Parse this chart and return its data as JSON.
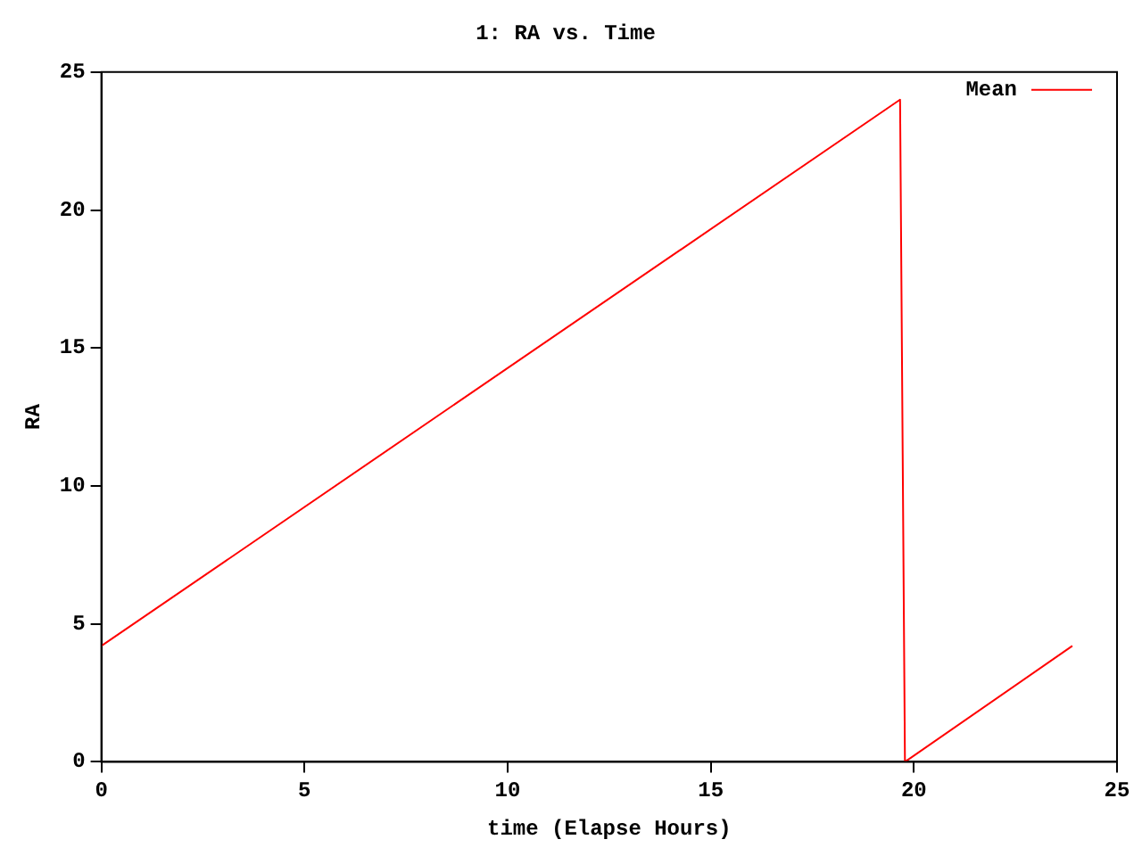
{
  "chart_data": {
    "type": "line",
    "title": "1: RA vs. Time",
    "xlabel": "time (Elapse Hours)",
    "ylabel": "RA",
    "x": [
      0,
      19.66,
      19.78,
      23.9
    ],
    "series": [
      {
        "name": "Mean",
        "color": "#ff0000",
        "values": [
          4.2,
          24,
          0,
          4.2
        ]
      }
    ],
    "xlim": [
      0,
      25
    ],
    "xticks": [
      0,
      5,
      10,
      15,
      20,
      25
    ],
    "ylim": [
      0,
      25
    ],
    "yticks": [
      0,
      5,
      10,
      15,
      20,
      25
    ],
    "grid": false,
    "legend": "top right",
    "marker": "none",
    "line_style": "solid"
  }
}
